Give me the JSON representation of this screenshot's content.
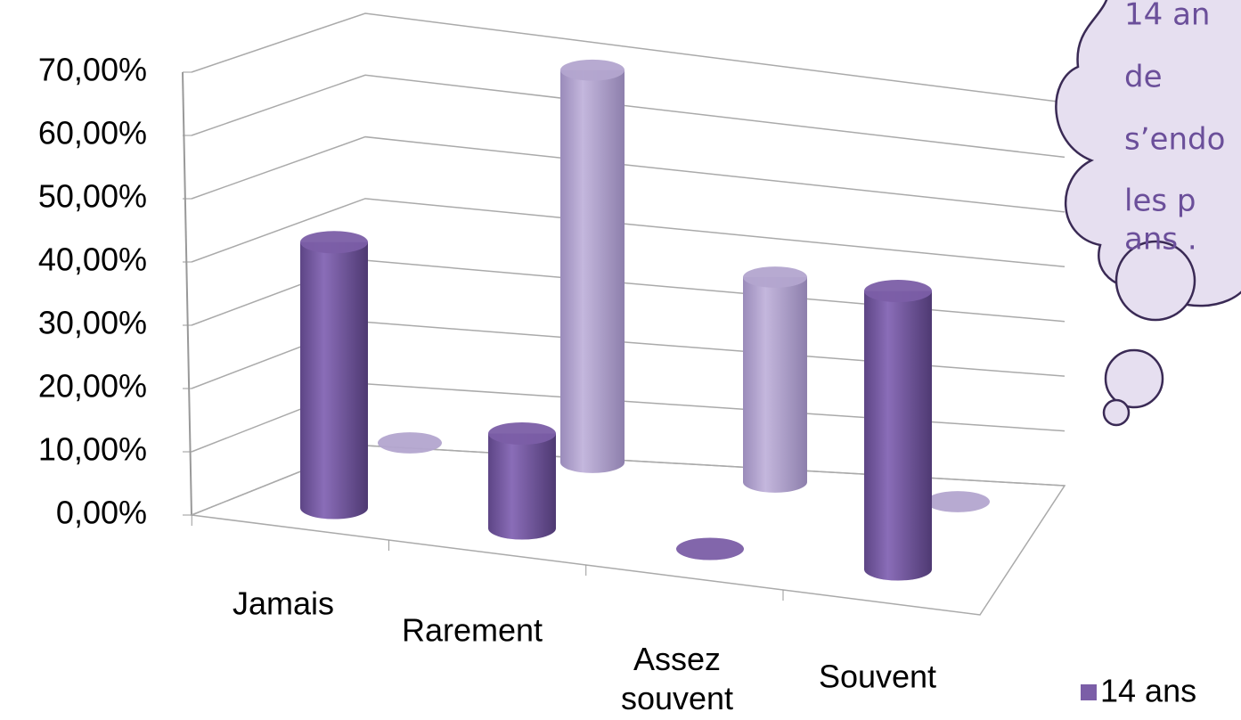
{
  "chart_data": {
    "type": "cylinder3d",
    "categories": [
      "Jamais",
      "Rarement",
      "Assez souvent",
      "Souvent"
    ],
    "series": [
      {
        "name": "14 ans",
        "color": "#7b5ea7",
        "values": [
          42,
          15,
          0,
          44
        ]
      },
      {
        "color": "#b3a5cf",
        "values": [
          0,
          67,
          35,
          0
        ]
      }
    ],
    "ylim": [
      0,
      70
    ],
    "yticks": [
      {
        "value": 0,
        "label": "0,00%"
      },
      {
        "value": 10,
        "label": "10,00%"
      },
      {
        "value": 20,
        "label": "20,00%"
      },
      {
        "value": 30,
        "label": "30,00%"
      },
      {
        "value": 40,
        "label": "40,00%"
      },
      {
        "value": 50,
        "label": "50,00%"
      },
      {
        "value": 60,
        "label": "60,00%"
      },
      {
        "value": 70,
        "label": "70,00%"
      }
    ],
    "grid": true,
    "annotation_lines": [
      "14 an",
      "de",
      "s’endo",
      "les p",
      "ans ."
    ]
  }
}
